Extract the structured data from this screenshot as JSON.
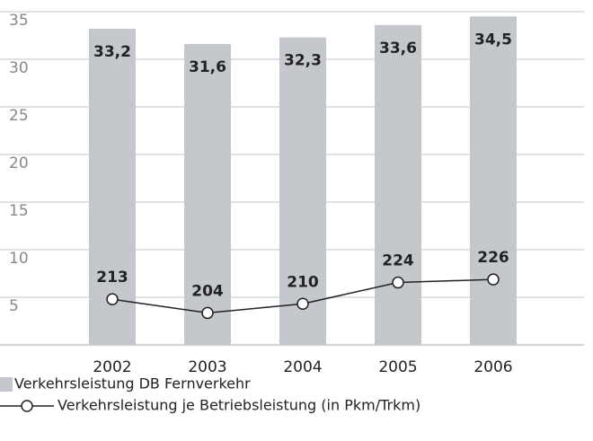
{
  "chart_data": {
    "type": "bar_line",
    "categories": [
      "2002",
      "2003",
      "2004",
      "2005",
      "2006"
    ],
    "series": [
      {
        "name": "Verkehrsleistung DB Fernverkehr",
        "type": "bar",
        "color": "#c4c8cd",
        "values": [
          33.2,
          31.6,
          32.3,
          33.6,
          34.5
        ],
        "value_labels": [
          "33,2",
          "31,6",
          "32,3",
          "33,6",
          "34,5"
        ]
      },
      {
        "name": "Verkehrsleistung je Betriebsleistung (in Pkm/Trkm)",
        "type": "line",
        "axis": "y2",
        "color": "#222222",
        "values": [
          213,
          204,
          210,
          224,
          226
        ]
      }
    ],
    "ylim": [
      0,
      35
    ],
    "yticks": [
      5,
      10,
      15,
      20,
      25,
      30,
      35
    ],
    "y2lim": [
      183,
      402
    ],
    "grid": true
  }
}
